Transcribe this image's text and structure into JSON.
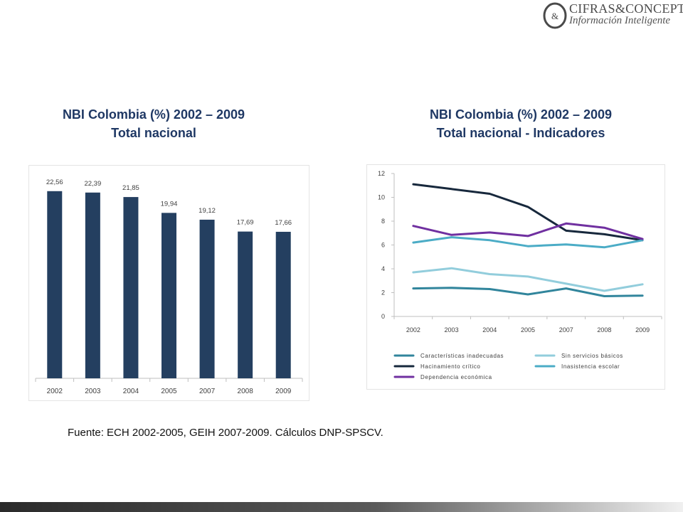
{
  "logo": {
    "name": "CIFRAS&CONCEPTOS",
    "tagline": "Información Inteligente",
    "mark": "&"
  },
  "left_chart": {
    "title_line1": "NBI Colombia (%) 2002 – 2009",
    "title_line2": "Total nacional"
  },
  "right_chart": {
    "title_line1": "NBI Colombia (%) 2002 – 2009",
    "title_line2": "Total nacional - Indicadores"
  },
  "source": "Fuente: ECH 2002-2005, GEIH 2007-2009. Cálculos DNP-SPSCV.",
  "colors": {
    "title": "#1f3864",
    "bar": "#243f60",
    "series": [
      "#31859c",
      "#92cddc",
      "#17283c",
      "#4bacc6",
      "#7030a0"
    ]
  },
  "chart_data": [
    {
      "type": "bar",
      "categories": [
        "2002",
        "2003",
        "2004",
        "2005",
        "2007",
        "2008",
        "2009"
      ],
      "values": [
        22.56,
        22.39,
        21.85,
        19.94,
        19.12,
        17.69,
        17.66
      ],
      "value_labels": [
        "22,56",
        "22,39",
        "21,85",
        "19,94",
        "19,12",
        "17,69",
        "17,66"
      ],
      "ylim": [
        0,
        24
      ],
      "grid": false,
      "legend": "none"
    },
    {
      "type": "line",
      "x": [
        "2002",
        "2003",
        "2004",
        "2005",
        "2007",
        "2008",
        "2009"
      ],
      "yticks": [
        "0",
        "2",
        "4",
        "6",
        "8",
        "10",
        "12"
      ],
      "ylim": [
        0,
        12
      ],
      "grid": false,
      "legend": "bottom",
      "series": [
        {
          "name": "Características inadecuadas",
          "values": [
            2.35,
            2.4,
            2.3,
            1.85,
            2.35,
            1.7,
            1.75
          ]
        },
        {
          "name": "Sin servicios básicos",
          "values": [
            3.7,
            4.05,
            3.55,
            3.35,
            2.75,
            2.15,
            2.7
          ]
        },
        {
          "name": "Hacinamiento crítico",
          "values": [
            11.1,
            10.7,
            10.3,
            9.2,
            7.2,
            6.9,
            6.4
          ]
        },
        {
          "name": "Inasistencia escolar",
          "values": [
            6.2,
            6.65,
            6.4,
            5.9,
            6.05,
            5.8,
            6.4
          ]
        },
        {
          "name": "Dependencia económica",
          "values": [
            7.6,
            6.85,
            7.05,
            6.75,
            7.8,
            7.45,
            6.5
          ]
        }
      ]
    }
  ]
}
